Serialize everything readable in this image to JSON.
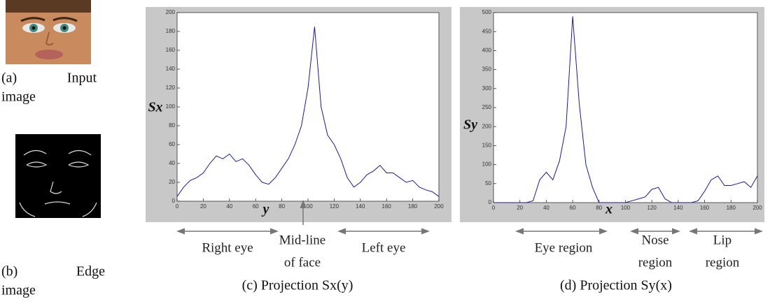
{
  "figure": {
    "captions": [
      "(a)",
      "Input",
      "image",
      "(b)",
      "Edge",
      "image"
    ]
  },
  "chart_data": [
    {
      "type": "line",
      "ylabel": "Sx",
      "xlabel": "y",
      "caption": "(c) Projection Sx(y)",
      "color": "#1a1aa8",
      "annotations": [
        "Right eye",
        "Mid-line",
        "of  face",
        "Left eye"
      ],
      "x": [
        0,
        5,
        10,
        15,
        20,
        25,
        30,
        35,
        40,
        45,
        50,
        55,
        60,
        65,
        70,
        75,
        80,
        85,
        90,
        95,
        100,
        105,
        110,
        115,
        120,
        125,
        130,
        135,
        140,
        145,
        150,
        155,
        160,
        165,
        170,
        175,
        180,
        185,
        190,
        195,
        200
      ],
      "values": [
        5,
        15,
        22,
        25,
        30,
        40,
        48,
        45,
        50,
        42,
        45,
        38,
        28,
        20,
        18,
        25,
        35,
        45,
        60,
        80,
        120,
        185,
        100,
        70,
        60,
        45,
        25,
        15,
        20,
        28,
        32,
        38,
        30,
        30,
        25,
        20,
        22,
        15,
        12,
        10,
        5
      ],
      "xlim": [
        0,
        200
      ],
      "xticks": [
        0,
        20,
        40,
        60,
        80,
        100,
        120,
        140,
        160,
        180,
        200
      ],
      "ylim": [
        0,
        200
      ],
      "yticks": [
        0,
        20,
        40,
        60,
        80,
        100,
        120,
        140,
        160,
        180,
        200
      ]
    },
    {
      "type": "line",
      "ylabel": "Sy",
      "xlabel": "x",
      "caption": "(d) Projection Sy(x)",
      "color": "#1a1aa8",
      "annotations": [
        "Eye region",
        "Nose",
        "region",
        "Lip",
        "region"
      ],
      "x": [
        0,
        5,
        10,
        15,
        20,
        25,
        30,
        35,
        40,
        45,
        50,
        55,
        60,
        65,
        70,
        75,
        80,
        85,
        90,
        95,
        100,
        105,
        110,
        115,
        120,
        125,
        130,
        135,
        140,
        145,
        150,
        155,
        160,
        165,
        170,
        175,
        180,
        185,
        190,
        195,
        200
      ],
      "values": [
        0,
        0,
        0,
        0,
        0,
        0,
        5,
        60,
        80,
        60,
        110,
        200,
        490,
        260,
        100,
        40,
        0,
        0,
        0,
        0,
        0,
        5,
        10,
        15,
        35,
        40,
        10,
        0,
        0,
        0,
        0,
        5,
        30,
        60,
        70,
        45,
        45,
        50,
        55,
        40,
        70
      ],
      "xlim": [
        0,
        200
      ],
      "xticks": [
        0,
        20,
        40,
        60,
        80,
        100,
        120,
        140,
        160,
        180,
        200
      ],
      "ylim": [
        0,
        500
      ],
      "yticks": [
        0,
        50,
        100,
        150,
        200,
        250,
        300,
        350,
        400,
        450,
        500
      ]
    }
  ]
}
